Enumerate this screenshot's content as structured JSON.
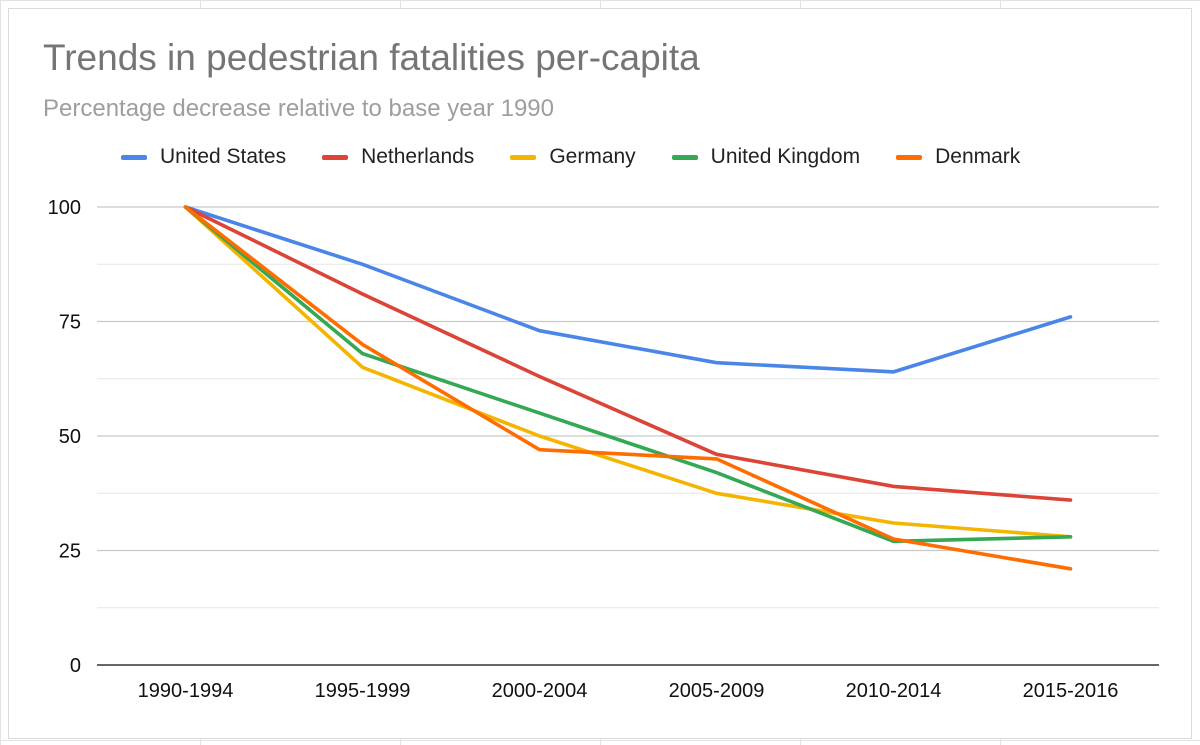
{
  "chart_data": {
    "type": "line",
    "title": "Trends in pedestrian fatalities per-capita",
    "subtitle": "Percentage decrease relative to base year 1990",
    "xlabel": "",
    "ylabel": "",
    "categories": [
      "1990-1994",
      "1995-1999",
      "2000-2004",
      "2005-2009",
      "2010-2014",
      "2015-2016"
    ],
    "ylim": [
      0,
      100
    ],
    "yticks": [
      0,
      25,
      50,
      75,
      100
    ],
    "grid": true,
    "legend_position": "top",
    "series": [
      {
        "name": "United States",
        "color": "#4A86E8",
        "values": [
          100,
          87.5,
          73,
          66,
          64,
          76
        ]
      },
      {
        "name": "Netherlands",
        "color": "#DB4437",
        "values": [
          100,
          81,
          63,
          46,
          39,
          36
        ]
      },
      {
        "name": "Germany",
        "color": "#F4B400",
        "values": [
          100,
          65,
          50,
          37.5,
          31,
          28
        ]
      },
      {
        "name": "United Kingdom",
        "color": "#34A853",
        "values": [
          100,
          68,
          55,
          42,
          27,
          28
        ]
      },
      {
        "name": "Denmark",
        "color": "#FF6D00",
        "values": [
          100,
          70,
          47,
          45,
          27.5,
          21
        ]
      }
    ]
  }
}
